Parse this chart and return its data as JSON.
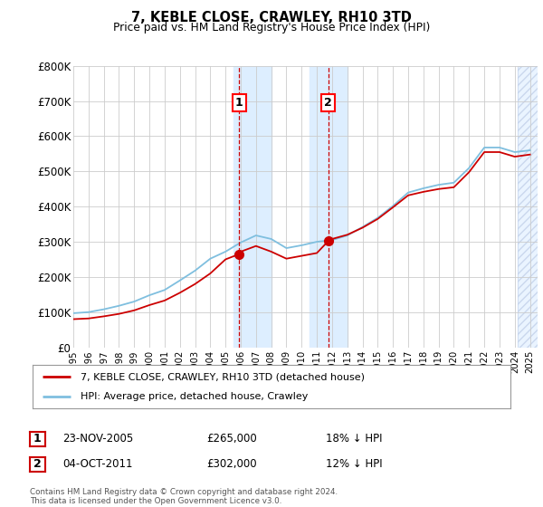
{
  "title": "7, KEBLE CLOSE, CRAWLEY, RH10 3TD",
  "subtitle": "Price paid vs. HM Land Registry's House Price Index (HPI)",
  "ylim": [
    0,
    800000
  ],
  "xlim_start": 1995.0,
  "xlim_end": 2025.5,
  "hpi_color": "#7fbfdf",
  "price_color": "#cc0000",
  "sale1_date": 2005.9,
  "sale1_price": 265000,
  "sale1_label": "1",
  "sale2_date": 2011.75,
  "sale2_price": 302000,
  "sale2_label": "2",
  "legend_line1": "7, KEBLE CLOSE, CRAWLEY, RH10 3TD (detached house)",
  "legend_line2": "HPI: Average price, detached house, Crawley",
  "table_row1_num": "1",
  "table_row1_date": "23-NOV-2005",
  "table_row1_price": "£265,000",
  "table_row1_hpi": "18% ↓ HPI",
  "table_row2_num": "2",
  "table_row2_date": "04-OCT-2011",
  "table_row2_price": "£302,000",
  "table_row2_hpi": "12% ↓ HPI",
  "footer": "Contains HM Land Registry data © Crown copyright and database right 2024.\nThis data is licensed under the Open Government Licence v3.0.",
  "background_color": "#ffffff",
  "grid_color": "#cccccc",
  "shaded_region_color": "#ddeeff",
  "years_hpi": [
    1995,
    1996,
    1997,
    1998,
    1999,
    2000,
    2001,
    2002,
    2003,
    2004,
    2005,
    2006,
    2007,
    2008,
    2009,
    2010,
    2011,
    2012,
    2013,
    2014,
    2015,
    2016,
    2017,
    2018,
    2019,
    2020,
    2021,
    2022,
    2023,
    2024,
    2025
  ],
  "hpi_values": [
    97000,
    100000,
    108000,
    118000,
    130000,
    148000,
    163000,
    190000,
    218000,
    252000,
    272000,
    298000,
    318000,
    308000,
    282000,
    290000,
    300000,
    305000,
    318000,
    342000,
    368000,
    402000,
    440000,
    452000,
    462000,
    468000,
    510000,
    568000,
    568000,
    555000,
    560000
  ],
  "years_price": [
    1995,
    1996,
    1997,
    1998,
    1999,
    2000,
    2001,
    2002,
    2003,
    2004,
    2005,
    2005.9,
    2006,
    2007,
    2008,
    2009,
    2010,
    2011,
    2011.75,
    2012,
    2013,
    2014,
    2015,
    2016,
    2017,
    2018,
    2019,
    2020,
    2021,
    2022,
    2023,
    2024,
    2025
  ],
  "price_values": [
    80000,
    82000,
    88000,
    95000,
    105000,
    120000,
    133000,
    155000,
    180000,
    210000,
    250000,
    265000,
    272000,
    288000,
    272000,
    252000,
    260000,
    268000,
    302000,
    308000,
    320000,
    340000,
    365000,
    398000,
    432000,
    442000,
    450000,
    455000,
    498000,
    555000,
    555000,
    542000,
    548000
  ]
}
